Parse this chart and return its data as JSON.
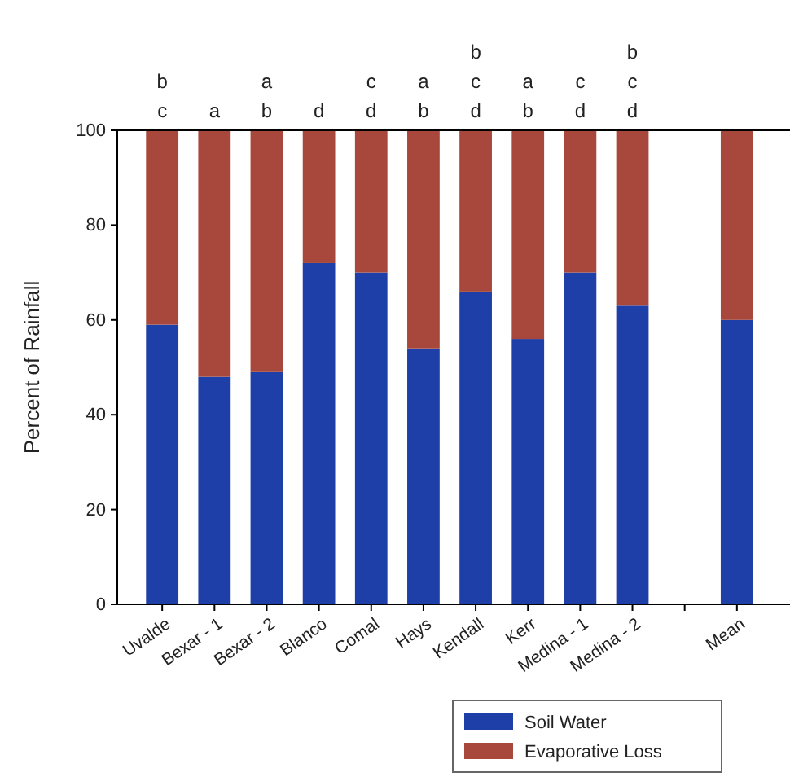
{
  "chart_data": {
    "type": "bar",
    "stacked": true,
    "ylabel": "Percent of Rainfall",
    "categories": [
      "Uvalde",
      "Bexar - 1",
      "Bexar - 2",
      "Blanco",
      "Comal",
      "Hays",
      "Kendall",
      "Kerr",
      "Medina - 1",
      "Medina - 2",
      null,
      "Mean"
    ],
    "series": [
      {
        "name": "Soil Water",
        "color": "#1f3fa8",
        "values": [
          59,
          48,
          49,
          72,
          70,
          54,
          66,
          56,
          70,
          63,
          null,
          60
        ]
      },
      {
        "name": "Evaporative Loss",
        "color": "#a8483c",
        "values": [
          41,
          52,
          51,
          28,
          30,
          46,
          34,
          44,
          30,
          37,
          null,
          40
        ]
      }
    ],
    "ylim": [
      0,
      100
    ],
    "yticks": [
      0,
      20,
      40,
      60,
      80,
      100
    ],
    "grid": false,
    "legend": "bottom",
    "annotations": [
      "b\nc",
      "a",
      "a\nb",
      "d",
      "c\nd",
      "a\nb",
      "b\nc\nd",
      "a\nb",
      "c\nd",
      "b\nc\nd"
    ]
  }
}
